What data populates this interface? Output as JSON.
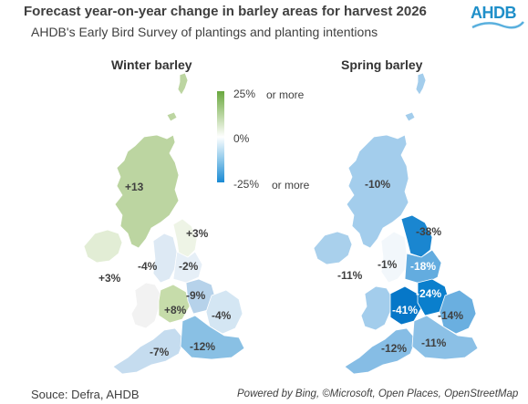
{
  "header": {
    "title": "Forecast year-on-year change in barley areas for harvest 2026",
    "subtitle": "AHDB's Early Bird Survey of plantings and planting intentions"
  },
  "logo": {
    "text": "AHDB"
  },
  "legend": {
    "top_value": "25%",
    "top_suffix": "or more",
    "mid_value": "0%",
    "bottom_value": "-25%",
    "bottom_suffix": "or more"
  },
  "maps": {
    "winter": {
      "title": "Winter barley",
      "regions": {
        "scotland": "+13",
        "northern_ireland": "+3%",
        "north_east": "+3%",
        "north_west": "-4%",
        "yorkshire": "-2%",
        "west_midlands": "+8%",
        "east_midlands": "-9%",
        "east": "-4%",
        "south_west": "-7%",
        "south_east": "-12%"
      }
    },
    "spring": {
      "title": "Spring barley",
      "regions": {
        "scotland": "-10%",
        "northern_ireland": "-11%",
        "north_east": "-38%",
        "north_west": "-1%",
        "yorkshire": "-18%",
        "east_midlands": "-24%",
        "west_midlands": "-41%",
        "east": "-14%",
        "south_west": "-12%",
        "south_east": "-11%"
      }
    }
  },
  "colors": {
    "winter_scotland": "#bcd5a1",
    "winter_ni": "#e2edd5",
    "winter_north_east": "#eef4e6",
    "winter_north_west": "#dde9f4",
    "winter_yorkshire": "#e6eff7",
    "winter_west_midlands": "#c6dcaa",
    "winter_east_midlands": "#b6d2ea",
    "winter_east": "#d4e6f3",
    "winter_wales": "#f2f2f2",
    "winter_south_west": "#c5dcef",
    "winter_south_east": "#89c0e4",
    "spring_scotland": "#a3cdec",
    "spring_ni": "#a9d0ec",
    "spring_north_east": "#1a86d0",
    "spring_north_west": "#f2f7fb",
    "spring_yorkshire": "#63acdf",
    "spring_east_midlands": "#0a7fcd",
    "spring_west_midlands": "#0677c8",
    "spring_east": "#6aafe0",
    "spring_wales": "#a3cdec",
    "spring_south_west": "#86bde5",
    "spring_south_east": "#8bc0e6"
  },
  "footer": {
    "source": "Souce: Defra, AHDB",
    "credits": "Powered by Bing, ©Microsoft, Open Places, OpenStreetMap"
  }
}
